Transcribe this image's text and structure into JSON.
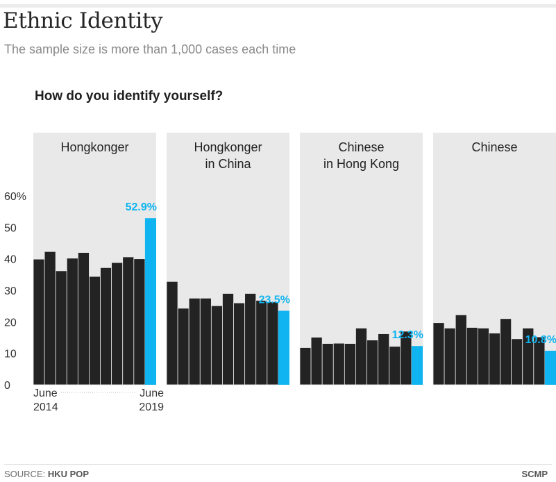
{
  "header": {
    "title": "Ethnic Identity",
    "subtitle": "The sample size is more than 1,000 cases each time"
  },
  "footer": {
    "source_label": "SOURCE: ",
    "source_name": "HKU POP",
    "publisher": "SCMP"
  },
  "colors": {
    "bar": "#232323",
    "highlight": "#0fb4f0",
    "panel_bg": "#e9e9e9",
    "axis_text": "#333333"
  },
  "chart_data": {
    "type": "bar",
    "title": "How do you identify yourself?",
    "ylim": [
      0,
      60
    ],
    "yticks": [
      0,
      10,
      20,
      30,
      40,
      50,
      60
    ],
    "ytick_labels": [
      "0",
      "10",
      "20",
      "30",
      "40",
      "50",
      "60%"
    ],
    "x_start_label": [
      "June",
      "2014"
    ],
    "x_end_label": [
      "June",
      "2019"
    ],
    "panels": [
      {
        "name": [
          "Hongkonger"
        ],
        "values": [
          39.9,
          42.3,
          36.2,
          40.2,
          42.0,
          34.4,
          37.2,
          38.8,
          40.6,
          40.0,
          52.9
        ],
        "latest_label": "52.9%"
      },
      {
        "name": [
          "Hongkonger",
          "in China"
        ],
        "values": [
          32.8,
          24.3,
          27.5,
          27.5,
          25.1,
          29.0,
          26.0,
          29.0,
          26.8,
          26.3,
          23.5
        ],
        "latest_label": "23.5%"
      },
      {
        "name": [
          "Chinese",
          "in Hong Kong"
        ],
        "values": [
          11.8,
          15.1,
          13.1,
          13.2,
          13.1,
          18.0,
          14.2,
          16.2,
          12.2,
          17.0,
          12.3
        ],
        "latest_label": "12.3%"
      },
      {
        "name": [
          "Chinese"
        ],
        "values": [
          19.7,
          18.0,
          22.2,
          18.2,
          18.0,
          16.4,
          21.0,
          14.6,
          18.0,
          15.2,
          10.8
        ],
        "latest_label": "10.8%"
      }
    ]
  }
}
